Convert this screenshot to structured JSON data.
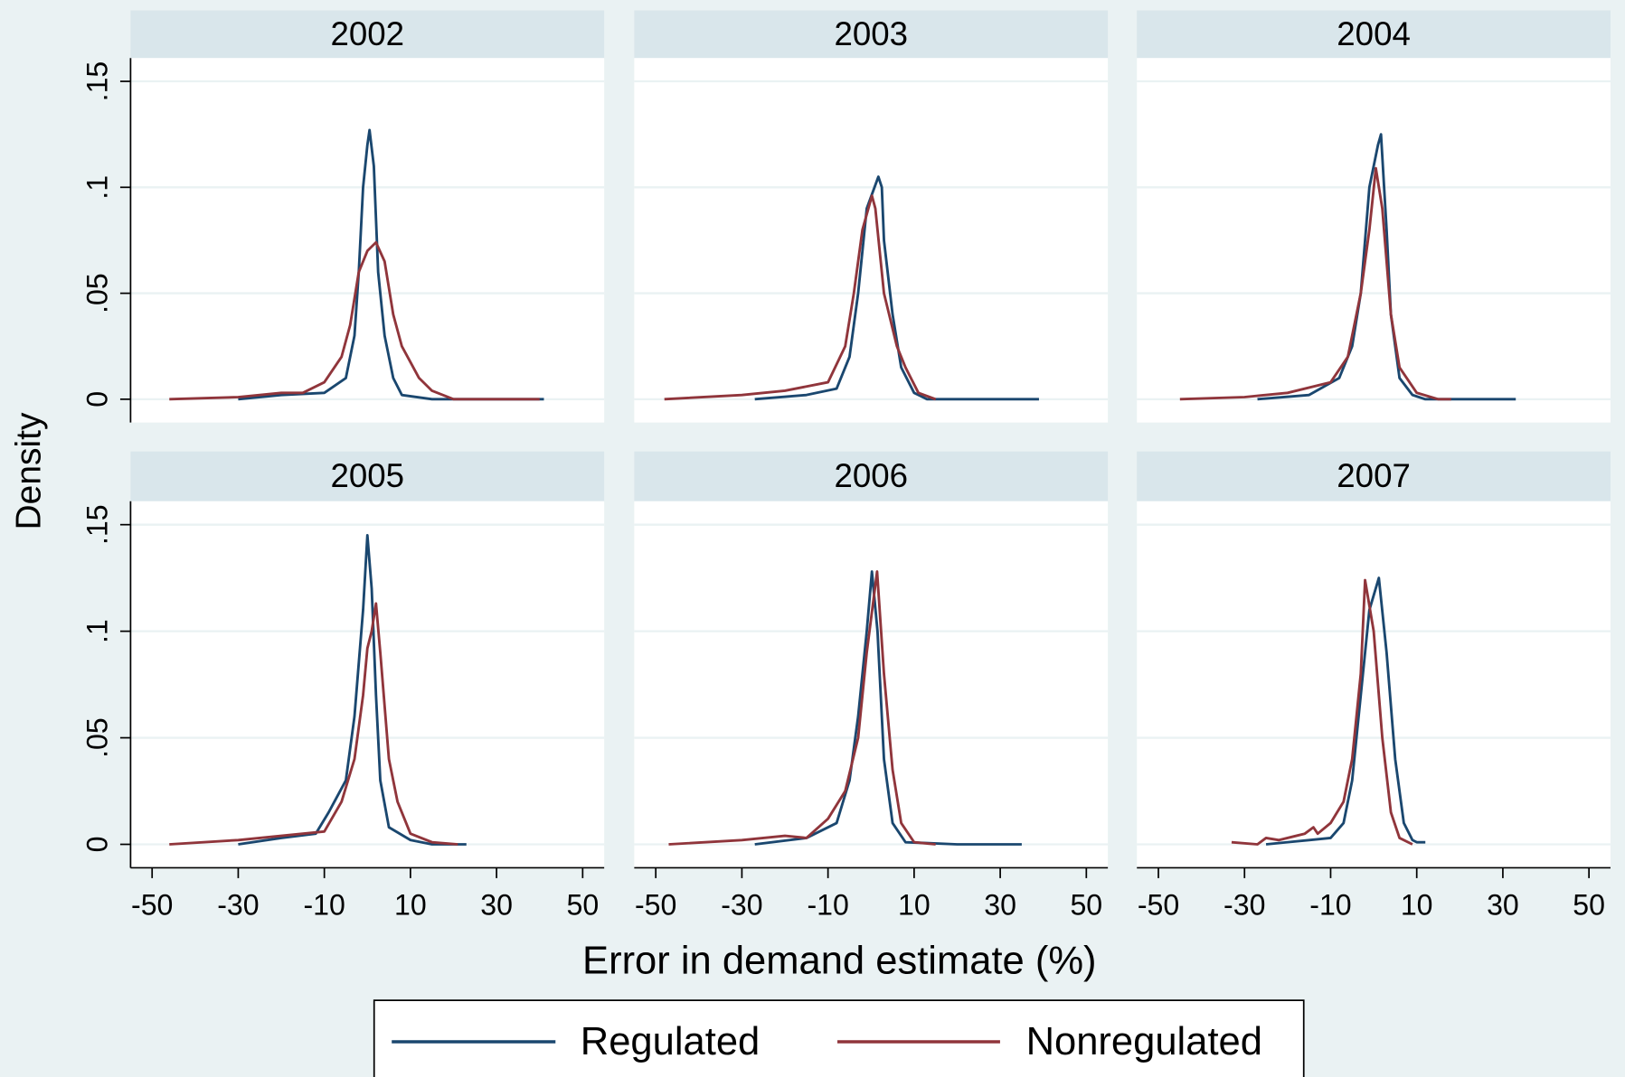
{
  "xlabel": "Error in demand estimate (%)",
  "ylabel": "Density",
  "chart_data": [
    {
      "type": "line",
      "title": "2002",
      "xlim": [
        -55,
        55
      ],
      "ylim": [
        -0.011,
        0.161
      ],
      "yticks": [
        {
          "value": 0,
          "label": "0"
        },
        {
          "value": 0.05,
          "label": ".05"
        },
        {
          "value": 0.1,
          "label": ".1"
        },
        {
          "value": 0.15,
          "label": ".15"
        }
      ],
      "grid": true,
      "series": [
        {
          "name": "Regulated",
          "color": "#1a476f",
          "x": [
            -30,
            -20,
            -10,
            -5,
            -3,
            -2,
            -1,
            0,
            0.5,
            1.5,
            2.5,
            4,
            6,
            8,
            15,
            41
          ],
          "values": [
            0,
            0.002,
            0.003,
            0.01,
            0.03,
            0.06,
            0.1,
            0.12,
            0.127,
            0.11,
            0.06,
            0.03,
            0.01,
            0.002,
            0,
            0
          ]
        },
        {
          "name": "Nonregulated",
          "color": "#90353b",
          "x": [
            -46,
            -30,
            -20,
            -15,
            -10,
            -6,
            -4,
            -2,
            0,
            2,
            4,
            6,
            8,
            12,
            15,
            20,
            40
          ],
          "values": [
            0,
            0.001,
            0.003,
            0.003,
            0.008,
            0.02,
            0.035,
            0.06,
            0.07,
            0.074,
            0.065,
            0.04,
            0.025,
            0.01,
            0.004,
            0,
            0
          ]
        }
      ]
    },
    {
      "type": "line",
      "title": "2003",
      "xlim": [
        -55,
        55
      ],
      "ylim": [
        -0.011,
        0.161
      ],
      "yticks": [
        0,
        0.05,
        0.1,
        0.15
      ],
      "grid": true,
      "series": [
        {
          "name": "Regulated",
          "color": "#1a476f",
          "x": [
            -27,
            -15,
            -8,
            -5,
            -3,
            -1,
            1.7,
            2.5,
            3,
            5,
            7,
            10,
            13,
            39
          ],
          "values": [
            0,
            0.002,
            0.005,
            0.02,
            0.05,
            0.09,
            0.105,
            0.1,
            0.075,
            0.04,
            0.015,
            0.003,
            0,
            0
          ]
        },
        {
          "name": "Nonregulated",
          "color": "#90353b",
          "x": [
            -48,
            -30,
            -20,
            -10,
            -6,
            -4,
            -2,
            0.2,
            1,
            3,
            6,
            8,
            11,
            15
          ],
          "values": [
            0,
            0.002,
            0.004,
            0.008,
            0.025,
            0.05,
            0.08,
            0.096,
            0.09,
            0.05,
            0.025,
            0.015,
            0.003,
            0
          ]
        }
      ]
    },
    {
      "type": "line",
      "title": "2004",
      "xlim": [
        -55,
        55
      ],
      "ylim": [
        -0.011,
        0.161
      ],
      "yticks": [
        0,
        0.05,
        0.1,
        0.15
      ],
      "grid": true,
      "series": [
        {
          "name": "Regulated",
          "color": "#1a476f",
          "x": [
            -27,
            -15,
            -8,
            -5,
            -3,
            -1,
            1,
            1.7,
            3,
            4,
            6,
            9,
            12,
            33
          ],
          "values": [
            0,
            0.002,
            0.01,
            0.025,
            0.05,
            0.1,
            0.12,
            0.125,
            0.08,
            0.04,
            0.01,
            0.002,
            0,
            0
          ]
        },
        {
          "name": "Nonregulated",
          "color": "#90353b",
          "x": [
            -45,
            -30,
            -20,
            -10,
            -6,
            -3,
            -1,
            0.5,
            2,
            4,
            6,
            10,
            15,
            18
          ],
          "values": [
            0,
            0.001,
            0.003,
            0.008,
            0.02,
            0.05,
            0.08,
            0.109,
            0.09,
            0.04,
            0.015,
            0.003,
            0,
            0
          ]
        }
      ]
    },
    {
      "type": "line",
      "title": "2005",
      "xlim": [
        -55,
        55
      ],
      "ylim": [
        -0.011,
        0.161
      ],
      "xticks": [
        -50,
        -30,
        -10,
        10,
        30,
        50
      ],
      "yticks": [
        {
          "value": 0,
          "label": "0"
        },
        {
          "value": 0.05,
          "label": ".05"
        },
        {
          "value": 0.1,
          "label": ".1"
        },
        {
          "value": 0.15,
          "label": ".15"
        }
      ],
      "grid": true,
      "series": [
        {
          "name": "Regulated",
          "color": "#1a476f",
          "x": [
            -30,
            -20,
            -12,
            -9,
            -5,
            -3,
            -1,
            0,
            1,
            2,
            3,
            5,
            10,
            15,
            23
          ],
          "values": [
            0,
            0.003,
            0.005,
            0.015,
            0.03,
            0.06,
            0.11,
            0.145,
            0.12,
            0.07,
            0.03,
            0.008,
            0.002,
            0,
            0
          ]
        },
        {
          "name": "Nonregulated",
          "color": "#90353b",
          "x": [
            -46,
            -30,
            -20,
            -10,
            -6,
            -3,
            -1,
            0,
            1,
            2,
            3,
            5,
            7,
            10,
            15,
            21
          ],
          "values": [
            0,
            0.002,
            0.004,
            0.006,
            0.02,
            0.04,
            0.07,
            0.092,
            0.1,
            0.113,
            0.09,
            0.04,
            0.02,
            0.005,
            0.001,
            0
          ]
        }
      ]
    },
    {
      "type": "line",
      "title": "2006",
      "xlim": [
        -55,
        55
      ],
      "ylim": [
        -0.011,
        0.161
      ],
      "xticks": [
        -50,
        -30,
        -10,
        10,
        30,
        50
      ],
      "yticks": [
        0,
        0.05,
        0.1,
        0.15
      ],
      "grid": true,
      "series": [
        {
          "name": "Regulated",
          "color": "#1a476f",
          "x": [
            -27,
            -15,
            -8,
            -5,
            -3,
            -1,
            0.2,
            1.5,
            3,
            5,
            8,
            20,
            35
          ],
          "values": [
            0,
            0.003,
            0.01,
            0.03,
            0.06,
            0.1,
            0.128,
            0.1,
            0.04,
            0.01,
            0.001,
            0,
            0
          ]
        },
        {
          "name": "Nonregulated",
          "color": "#90353b",
          "x": [
            -47,
            -30,
            -20,
            -15,
            -10,
            -6,
            -3,
            -1,
            1.4,
            3,
            5,
            7,
            10,
            15
          ],
          "values": [
            0,
            0.002,
            0.004,
            0.003,
            0.012,
            0.025,
            0.05,
            0.09,
            0.128,
            0.08,
            0.035,
            0.01,
            0.001,
            0
          ]
        }
      ]
    },
    {
      "type": "line",
      "title": "2007",
      "xlim": [
        -55,
        55
      ],
      "ylim": [
        -0.011,
        0.161
      ],
      "xticks": [
        -50,
        -30,
        -10,
        10,
        30,
        50
      ],
      "yticks": [
        0,
        0.05,
        0.1,
        0.15
      ],
      "grid": true,
      "series": [
        {
          "name": "Regulated",
          "color": "#1a476f",
          "x": [
            -25,
            -20,
            -15,
            -10,
            -7,
            -5,
            -3,
            -1,
            1.2,
            3,
            5,
            7,
            9,
            10,
            12
          ],
          "values": [
            0,
            0.001,
            0.002,
            0.003,
            0.01,
            0.03,
            0.07,
            0.11,
            0.125,
            0.09,
            0.04,
            0.01,
            0.002,
            0.001,
            0.001
          ]
        },
        {
          "name": "Nonregulated",
          "color": "#90353b",
          "x": [
            -33,
            -27,
            -25,
            -22,
            -18,
            -16,
            -14,
            -13,
            -10,
            -7,
            -5,
            -3,
            -2,
            0,
            2,
            4,
            6,
            9
          ],
          "values": [
            0.001,
            0,
            0.003,
            0.002,
            0.004,
            0.005,
            0.008,
            0.005,
            0.01,
            0.02,
            0.04,
            0.08,
            0.124,
            0.1,
            0.05,
            0.015,
            0.003,
            0
          ]
        }
      ]
    }
  ]
}
